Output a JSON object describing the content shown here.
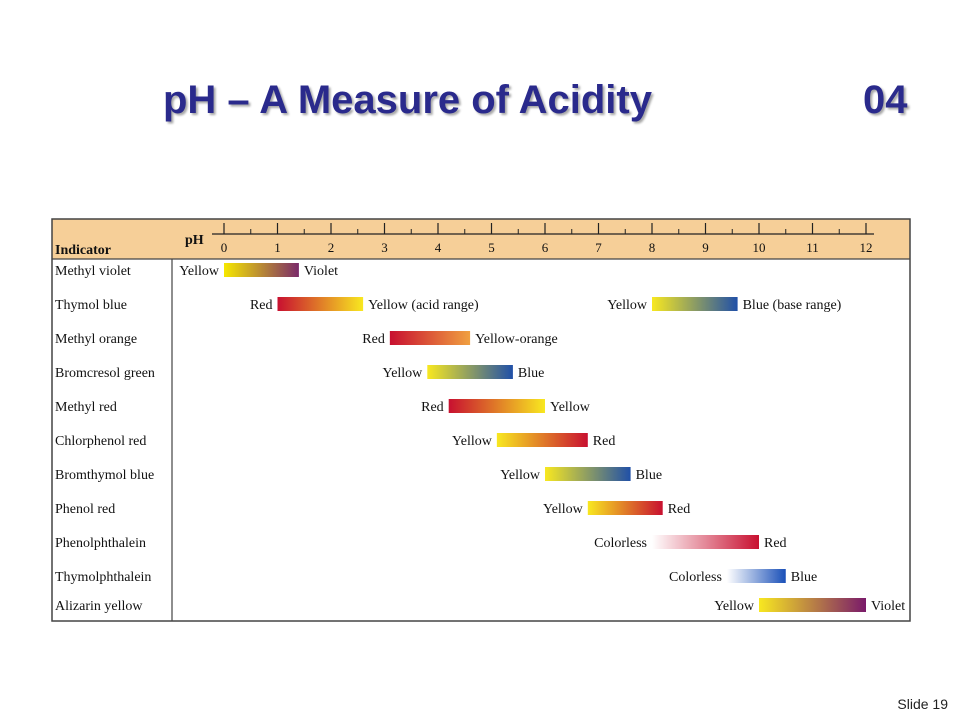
{
  "slide": {
    "title": "pH – A Measure of Acidity",
    "number": "04",
    "footer": "Slide 19"
  },
  "colors": {
    "title": "#2a2a8c",
    "header_band": "#f6cf98",
    "border": "#444444"
  },
  "table": {
    "indicator_header": "Indicator",
    "ph_header": "pH",
    "ph_ticks": [
      "0",
      "1",
      "2",
      "3",
      "4",
      "5",
      "6",
      "7",
      "8",
      "9",
      "10",
      "11",
      "12"
    ]
  },
  "chart_data": {
    "type": "range-bar",
    "x_axis": {
      "label": "pH",
      "min": 0,
      "max": 12
    },
    "indicators": [
      {
        "name": "Methyl violet",
        "ranges": [
          {
            "from": 0.0,
            "to": 1.4,
            "low_label": "Yellow",
            "high_label": "Violet",
            "colors": [
              "#f6e800",
              "#7a2a6a"
            ]
          }
        ]
      },
      {
        "name": "Thymol blue",
        "ranges": [
          {
            "from": 1.0,
            "to": 2.6,
            "low_label": "Red",
            "high_label": "Yellow (acid range)",
            "colors": [
              "#c81030",
              "#f8e820"
            ]
          },
          {
            "from": 8.0,
            "to": 9.6,
            "low_label": "Yellow",
            "high_label": "Blue (base range)",
            "colors": [
              "#f8e820",
              "#2050a8"
            ]
          }
        ]
      },
      {
        "name": "Methyl orange",
        "ranges": [
          {
            "from": 3.1,
            "to": 4.6,
            "low_label": "Red",
            "high_label": "Yellow-orange",
            "colors": [
              "#c81030",
              "#f0a040"
            ]
          }
        ]
      },
      {
        "name": "Bromcresol green",
        "ranges": [
          {
            "from": 3.8,
            "to": 5.4,
            "low_label": "Yellow",
            "high_label": "Blue",
            "colors": [
              "#f8e820",
              "#2050a8"
            ]
          }
        ]
      },
      {
        "name": "Methyl red",
        "ranges": [
          {
            "from": 4.2,
            "to": 6.0,
            "low_label": "Red",
            "high_label": "Yellow",
            "colors": [
              "#c81030",
              "#f8e820"
            ]
          }
        ]
      },
      {
        "name": "Chlorphenol red",
        "ranges": [
          {
            "from": 5.1,
            "to": 6.8,
            "low_label": "Yellow",
            "high_label": "Red",
            "colors": [
              "#f8e820",
              "#c81030"
            ]
          }
        ]
      },
      {
        "name": "Bromthymol blue",
        "ranges": [
          {
            "from": 6.0,
            "to": 7.6,
            "low_label": "Yellow",
            "high_label": "Blue",
            "colors": [
              "#f8e820",
              "#2050a8"
            ]
          }
        ]
      },
      {
        "name": "Phenol red",
        "ranges": [
          {
            "from": 6.8,
            "to": 8.2,
            "low_label": "Yellow",
            "high_label": "Red",
            "colors": [
              "#f8e820",
              "#c81030"
            ]
          }
        ]
      },
      {
        "name": "Phenolphthalein",
        "ranges": [
          {
            "from": 8.0,
            "to": 10.0,
            "low_label": "Colorless",
            "high_label": "Red",
            "colors": [
              "#ffffff",
              "#c81030"
            ]
          }
        ]
      },
      {
        "name": "Thymolphthalein",
        "ranges": [
          {
            "from": 9.4,
            "to": 10.5,
            "low_label": "Colorless",
            "high_label": "Blue",
            "colors": [
              "#ffffff",
              "#1a50b8"
            ]
          }
        ]
      },
      {
        "name": "Alizarin yellow",
        "ranges": [
          {
            "from": 10.0,
            "to": 12.0,
            "low_label": "Yellow",
            "high_label": "Violet",
            "colors": [
              "#f8e820",
              "#7a1a6a"
            ]
          }
        ]
      }
    ]
  }
}
